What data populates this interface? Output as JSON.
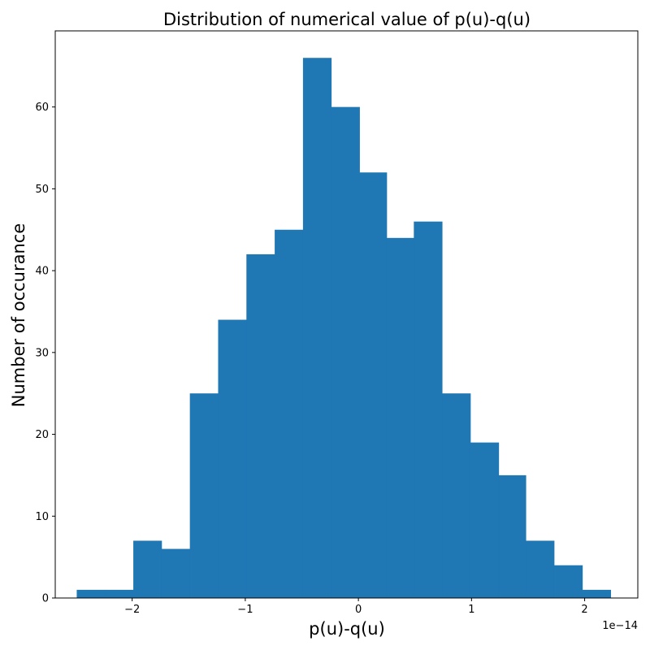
{
  "chart_data": {
    "type": "bar",
    "title": "Distribution of numerical value of p(u)-q(u)",
    "xlabel": "p(u)-q(u)",
    "ylabel": "Number of occurance",
    "x_offset_label": "1e−14",
    "bar_color": "#1f77b4",
    "grid": false,
    "legend": "none",
    "xlim": [
      -2.68,
      2.47
    ],
    "ylim": [
      0,
      69.3
    ],
    "x_ticks": [
      {
        "value": -2,
        "label": "−2"
      },
      {
        "value": -1,
        "label": "−1"
      },
      {
        "value": 0,
        "label": "0"
      },
      {
        "value": 1,
        "label": "1"
      },
      {
        "value": 2,
        "label": "2"
      }
    ],
    "y_ticks": [
      {
        "value": 0,
        "label": "0"
      },
      {
        "value": 10,
        "label": "10"
      },
      {
        "value": 20,
        "label": "20"
      },
      {
        "value": 30,
        "label": "30"
      },
      {
        "value": 40,
        "label": "40"
      },
      {
        "value": 50,
        "label": "50"
      },
      {
        "value": 60,
        "label": "60"
      }
    ],
    "bins": [
      {
        "x0": -2.49,
        "x1": -2.24,
        "count": 1
      },
      {
        "x0": -2.24,
        "x1": -1.99,
        "count": 1
      },
      {
        "x0": -1.99,
        "x1": -1.74,
        "count": 7
      },
      {
        "x0": -1.74,
        "x1": -1.49,
        "count": 6
      },
      {
        "x0": -1.49,
        "x1": -1.24,
        "count": 25
      },
      {
        "x0": -1.24,
        "x1": -0.99,
        "count": 34
      },
      {
        "x0": -0.99,
        "x1": -0.74,
        "count": 42
      },
      {
        "x0": -0.74,
        "x1": -0.49,
        "count": 45
      },
      {
        "x0": -0.49,
        "x1": -0.24,
        "count": 66
      },
      {
        "x0": -0.24,
        "x1": 0.01,
        "count": 60
      },
      {
        "x0": 0.01,
        "x1": 0.25,
        "count": 52
      },
      {
        "x0": 0.25,
        "x1": 0.49,
        "count": 44
      },
      {
        "x0": 0.49,
        "x1": 0.74,
        "count": 46
      },
      {
        "x0": 0.74,
        "x1": 0.99,
        "count": 25
      },
      {
        "x0": 0.99,
        "x1": 1.24,
        "count": 19
      },
      {
        "x0": 1.24,
        "x1": 1.48,
        "count": 15
      },
      {
        "x0": 1.48,
        "x1": 1.73,
        "count": 7
      },
      {
        "x0": 1.73,
        "x1": 1.98,
        "count": 4
      },
      {
        "x0": 1.98,
        "x1": 2.23,
        "count": 1
      }
    ]
  }
}
